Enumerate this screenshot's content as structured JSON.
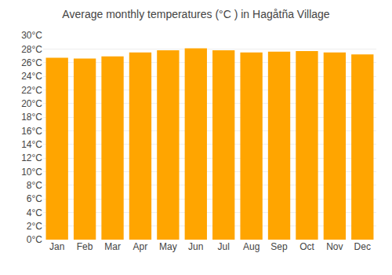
{
  "chart_data": {
    "type": "bar",
    "title": "Average monthly temperatures (°C ) in Hagåtña Village",
    "categories": [
      "Jan",
      "Feb",
      "Mar",
      "Apr",
      "May",
      "Jun",
      "Jul",
      "Aug",
      "Sep",
      "Oct",
      "Nov",
      "Dec"
    ],
    "values": [
      26.7,
      26.6,
      26.9,
      27.5,
      27.8,
      28.1,
      27.8,
      27.5,
      27.6,
      27.7,
      27.5,
      27.2
    ],
    "color": "#FFA500",
    "ylim": [
      0,
      30
    ],
    "yticks": [
      {
        "value": 0,
        "label": "0°C"
      },
      {
        "value": 2,
        "label": "2°C"
      },
      {
        "value": 4,
        "label": "4°C"
      },
      {
        "value": 6,
        "label": "6°C"
      },
      {
        "value": 8,
        "label": "8°C"
      },
      {
        "value": 10,
        "label": "10°C"
      },
      {
        "value": 12,
        "label": "12°C"
      },
      {
        "value": 14,
        "label": "14°C"
      },
      {
        "value": 16,
        "label": "16°C"
      },
      {
        "value": 18,
        "label": "18°C"
      },
      {
        "value": 20,
        "label": "20°C"
      },
      {
        "value": 22,
        "label": "22°C"
      },
      {
        "value": 24,
        "label": "24°C"
      },
      {
        "value": 26,
        "label": "26°C"
      },
      {
        "value": 28,
        "label": "28°C"
      },
      {
        "value": 30,
        "label": "30°C"
      }
    ],
    "grid": true
  }
}
